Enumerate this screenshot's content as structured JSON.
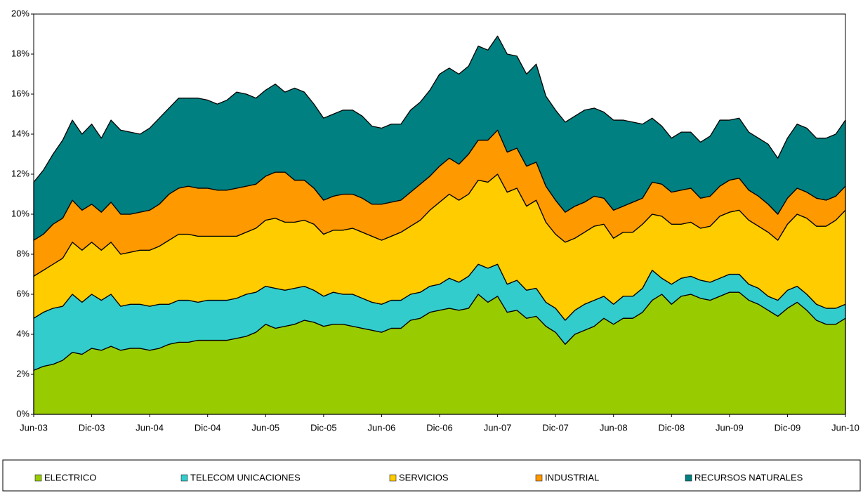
{
  "chart_data": {
    "type": "stacked-area",
    "categories": [
      "Jun-03",
      null,
      null,
      null,
      null,
      null,
      "Dic-03",
      null,
      null,
      null,
      null,
      null,
      "Jun-04",
      null,
      null,
      null,
      null,
      null,
      "Dic-04",
      null,
      null,
      null,
      null,
      null,
      "Jun-05",
      null,
      null,
      null,
      null,
      null,
      "Dic-05",
      null,
      null,
      null,
      null,
      null,
      "Jun-06",
      null,
      null,
      null,
      null,
      null,
      "Dic-06",
      null,
      null,
      null,
      null,
      null,
      "Jun-07",
      null,
      null,
      null,
      null,
      null,
      "Dic-07",
      null,
      null,
      null,
      null,
      null,
      "Jun-08",
      null,
      null,
      null,
      null,
      null,
      "Dic-08",
      null,
      null,
      null,
      null,
      null,
      "Jun-09",
      null,
      null,
      null,
      null,
      null,
      "Dic-09",
      null,
      null,
      null,
      null,
      null,
      "Jun-10"
    ],
    "series": [
      {
        "name": "ELECTRICO",
        "color": "#99cc00",
        "values": [
          2.2,
          2.4,
          2.5,
          2.7,
          3.1,
          3.0,
          3.3,
          3.2,
          3.4,
          3.2,
          3.3,
          3.3,
          3.2,
          3.3,
          3.5,
          3.6,
          3.6,
          3.7,
          3.7,
          3.7,
          3.7,
          3.8,
          3.9,
          4.1,
          4.5,
          4.3,
          4.4,
          4.5,
          4.7,
          4.6,
          4.4,
          4.5,
          4.5,
          4.4,
          4.3,
          4.2,
          4.1,
          4.3,
          4.3,
          4.7,
          4.8,
          5.1,
          5.2,
          5.3,
          5.2,
          5.3,
          6.0,
          5.6,
          5.9,
          5.1,
          5.2,
          4.8,
          4.9,
          4.4,
          4.1,
          3.5,
          4.0,
          4.2,
          4.4,
          4.8,
          4.5,
          4.8,
          4.8,
          5.1,
          5.7,
          6.0,
          5.5,
          5.9,
          6.0,
          5.8,
          5.7,
          5.9,
          6.1,
          6.1,
          5.7,
          5.5,
          5.2,
          4.9,
          5.3,
          5.6,
          5.2,
          4.7,
          4.5,
          4.5,
          4.8
        ]
      },
      {
        "name": "TELECOM UNICACIONES",
        "color": "#33cccc",
        "values": [
          2.6,
          2.7,
          2.8,
          2.7,
          2.9,
          2.6,
          2.7,
          2.5,
          2.6,
          2.2,
          2.2,
          2.2,
          2.2,
          2.2,
          2.0,
          2.1,
          2.1,
          1.9,
          2.0,
          2.0,
          2.0,
          2.0,
          2.1,
          2.0,
          1.9,
          2.0,
          1.8,
          1.8,
          1.7,
          1.6,
          1.5,
          1.6,
          1.5,
          1.6,
          1.5,
          1.4,
          1.4,
          1.4,
          1.4,
          1.3,
          1.3,
          1.3,
          1.3,
          1.5,
          1.4,
          1.6,
          1.5,
          1.7,
          1.6,
          1.4,
          1.5,
          1.4,
          1.4,
          1.2,
          1.2,
          1.2,
          1.2,
          1.3,
          1.3,
          1.1,
          1.0,
          1.1,
          1.1,
          1.2,
          1.5,
          0.8,
          1.0,
          0.9,
          0.9,
          0.9,
          0.9,
          0.9,
          0.9,
          0.9,
          0.8,
          0.8,
          0.7,
          0.8,
          0.9,
          0.8,
          0.8,
          0.8,
          0.8,
          0.8,
          0.7
        ]
      },
      {
        "name": "SERVICIOS",
        "color": "#ffcc00",
        "values": [
          2.1,
          2.1,
          2.2,
          2.4,
          2.6,
          2.6,
          2.6,
          2.5,
          2.6,
          2.6,
          2.6,
          2.7,
          2.8,
          2.9,
          3.2,
          3.3,
          3.3,
          3.3,
          3.2,
          3.2,
          3.2,
          3.1,
          3.1,
          3.2,
          3.3,
          3.5,
          3.4,
          3.3,
          3.3,
          3.3,
          3.1,
          3.1,
          3.2,
          3.3,
          3.3,
          3.3,
          3.2,
          3.2,
          3.4,
          3.4,
          3.6,
          3.8,
          4.1,
          4.2,
          4.1,
          4.1,
          4.2,
          4.3,
          4.5,
          4.6,
          4.6,
          4.2,
          4.4,
          4.0,
          3.7,
          3.9,
          3.6,
          3.6,
          3.7,
          3.6,
          3.3,
          3.2,
          3.2,
          3.2,
          2.8,
          3.1,
          3.0,
          2.7,
          2.7,
          2.6,
          2.8,
          3.1,
          3.1,
          3.2,
          3.2,
          3.1,
          3.2,
          3.0,
          3.3,
          3.6,
          3.8,
          3.9,
          4.1,
          4.4,
          4.7
        ]
      },
      {
        "name": "INDUSTRIAL",
        "color": "#ff9900",
        "values": [
          1.8,
          1.8,
          2.0,
          2.0,
          2.1,
          2.0,
          1.9,
          1.9,
          2.0,
          2.0,
          1.9,
          1.9,
          2.0,
          2.1,
          2.3,
          2.3,
          2.4,
          2.4,
          2.4,
          2.3,
          2.3,
          2.4,
          2.3,
          2.2,
          2.2,
          2.3,
          2.5,
          2.1,
          2.0,
          1.8,
          1.7,
          1.7,
          1.8,
          1.7,
          1.7,
          1.6,
          1.8,
          1.7,
          1.6,
          1.7,
          1.8,
          1.7,
          1.8,
          1.8,
          1.8,
          2.0,
          2.0,
          2.1,
          2.2,
          2.0,
          2.0,
          2.0,
          1.9,
          1.8,
          1.7,
          1.5,
          1.6,
          1.5,
          1.5,
          1.3,
          1.4,
          1.3,
          1.5,
          1.3,
          1.6,
          1.6,
          1.6,
          1.7,
          1.7,
          1.5,
          1.5,
          1.5,
          1.6,
          1.6,
          1.5,
          1.5,
          1.4,
          1.3,
          1.3,
          1.3,
          1.3,
          1.4,
          1.3,
          1.2,
          1.2
        ]
      },
      {
        "name": "RECURSOS NATURALES",
        "color": "#008080",
        "values": [
          2.9,
          3.2,
          3.5,
          3.9,
          4.0,
          3.8,
          4.0,
          3.7,
          4.1,
          4.2,
          4.1,
          3.9,
          4.1,
          4.3,
          4.3,
          4.5,
          4.4,
          4.5,
          4.4,
          4.3,
          4.5,
          4.8,
          4.6,
          4.3,
          4.3,
          4.4,
          4.0,
          4.6,
          4.4,
          4.2,
          4.1,
          4.1,
          4.2,
          4.2,
          4.1,
          3.9,
          3.8,
          3.9,
          3.8,
          4.1,
          4.1,
          4.3,
          4.6,
          4.5,
          4.5,
          4.4,
          4.7,
          4.5,
          4.7,
          4.9,
          4.6,
          4.6,
          4.9,
          4.5,
          4.5,
          4.5,
          4.5,
          4.6,
          4.4,
          4.3,
          4.5,
          4.3,
          4.0,
          3.7,
          3.2,
          2.9,
          2.7,
          2.9,
          2.8,
          2.8,
          3.0,
          3.3,
          3.0,
          3.0,
          2.9,
          2.9,
          3.0,
          2.8,
          3.0,
          3.2,
          3.2,
          3.0,
          3.1,
          3.1,
          3.3
        ]
      }
    ],
    "ylim": [
      0,
      20
    ],
    "yticks": [
      {
        "value": 0,
        "label": "0%"
      },
      {
        "value": 2,
        "label": "2%"
      },
      {
        "value": 4,
        "label": "4%"
      },
      {
        "value": 6,
        "label": "6%"
      },
      {
        "value": 8,
        "label": "8%"
      },
      {
        "value": 10,
        "label": "10%"
      },
      {
        "value": 12,
        "label": "12%"
      },
      {
        "value": 14,
        "label": "14%"
      },
      {
        "value": 16,
        "label": "16%"
      },
      {
        "value": 18,
        "label": "18%"
      },
      {
        "value": 20,
        "label": "20%"
      }
    ],
    "grid": false,
    "legend": "bottom"
  }
}
